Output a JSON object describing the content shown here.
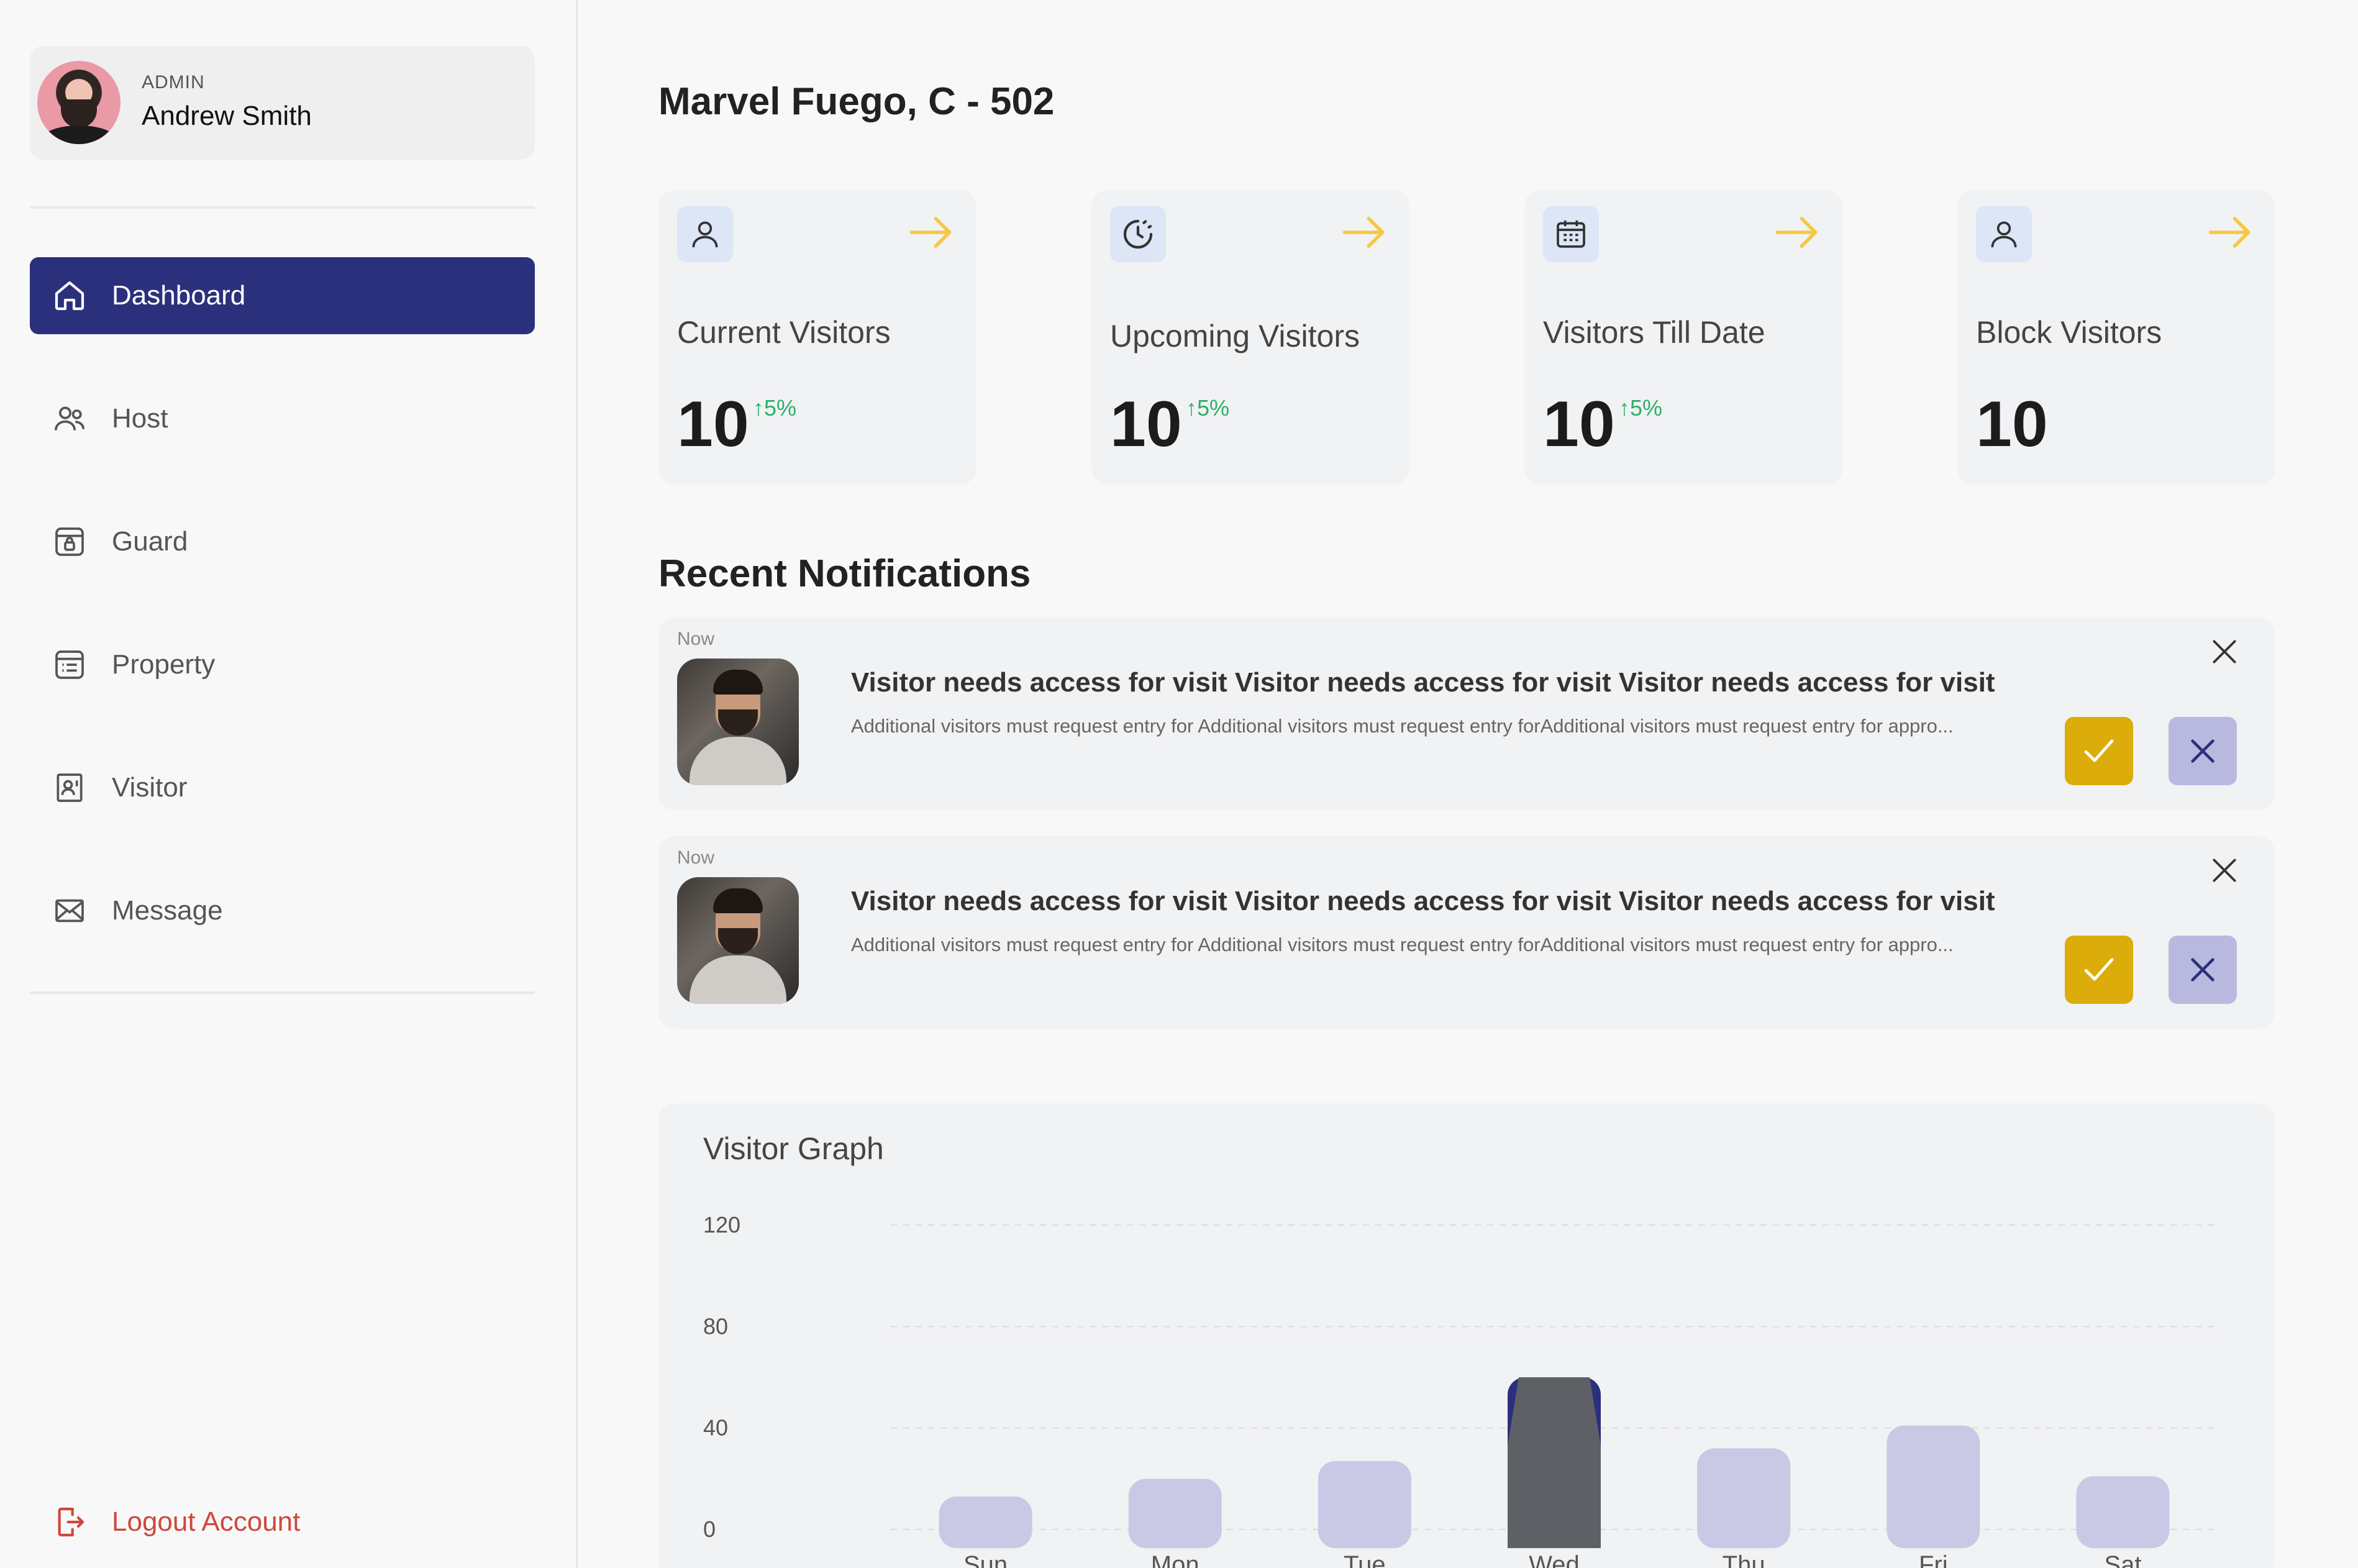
{
  "profile": {
    "role": "ADMIN",
    "name": "Andrew Smith"
  },
  "nav": {
    "items": [
      {
        "label": "Dashboard",
        "icon": "home-icon",
        "active": true
      },
      {
        "label": "Host",
        "icon": "users-icon"
      },
      {
        "label": "Guard",
        "icon": "guard-icon"
      },
      {
        "label": "Property",
        "icon": "property-icon"
      },
      {
        "label": "Visitor",
        "icon": "visitor-card-icon"
      },
      {
        "label": "Message",
        "icon": "mail-icon"
      }
    ],
    "logout_label": "Logout Account"
  },
  "page": {
    "title": "Marvel Fuego, C - 502"
  },
  "stats": [
    {
      "label": "Current Visitors",
      "value": "10",
      "trend": "5%",
      "icon": "user-icon"
    },
    {
      "label": "Upcoming Visitors",
      "value": "10",
      "trend": "5%",
      "icon": "clock-icon"
    },
    {
      "label": "Visitors Till Date",
      "value": "10",
      "trend": "5%",
      "icon": "calendar-icon"
    },
    {
      "label": "Block Visitors",
      "value": "10",
      "trend": "",
      "icon": "user-icon"
    }
  ],
  "notifications": {
    "title": "Recent Notifications",
    "items": [
      {
        "time": "Now",
        "heading": "Visitor needs access for visit Visitor needs access for visit Visitor needs access for visit",
        "body": "Additional visitors must request entry for Additional visitors must request entry forAdditional visitors must request entry for appro..."
      },
      {
        "time": "Now",
        "heading": "Visitor needs access for visit Visitor needs access for visit Visitor needs access for visit",
        "body": "Additional visitors must request entry for Additional visitors must request entry forAdditional visitors must request entry for appro..."
      }
    ]
  },
  "colors": {
    "accent": "#2b307c",
    "bar": "#c9c9e6",
    "bar_highlight": "#5f6066",
    "approve": "#dcad0a",
    "reject": "#b9b9e0",
    "arrow": "#f5c842",
    "trend": "#2cb067",
    "logout": "#d0473b"
  },
  "chart_data": {
    "type": "bar",
    "title": "Visitor Graph",
    "categories": [
      "Sun",
      "Mon",
      "Tue",
      "Wed",
      "Thu",
      "Fri",
      "Sat"
    ],
    "values": [
      13,
      20,
      27,
      60,
      32,
      41,
      21
    ],
    "highlight_index": 3,
    "yticks": [
      0,
      40,
      80,
      120
    ],
    "ylim": [
      0,
      120
    ],
    "grid": true
  }
}
